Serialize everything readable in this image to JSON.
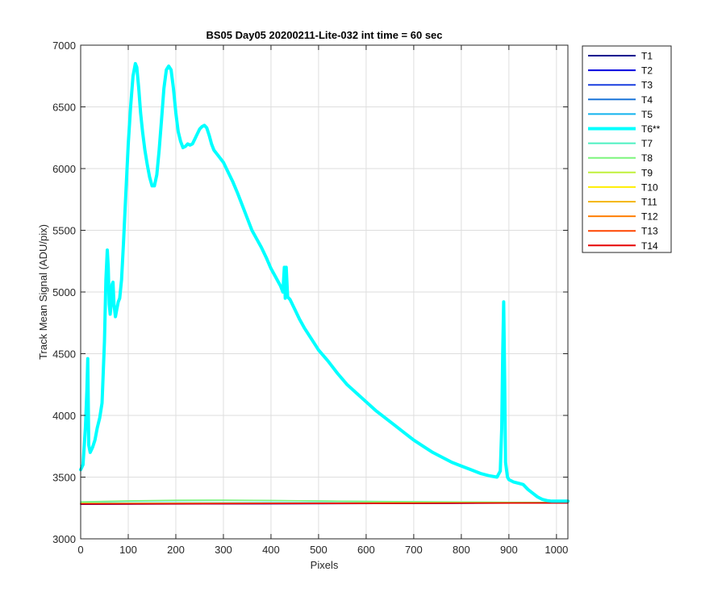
{
  "chart_data": {
    "type": "line",
    "title": "BS05 Day05 20200211-Lite-032 int time = 60 sec",
    "xlabel": "Pixels",
    "ylabel": "Track Mean Signal (ADU/pix)",
    "xlim": [
      0,
      1024
    ],
    "ylim": [
      3000,
      7000
    ],
    "xticks": [
      0,
      100,
      200,
      300,
      400,
      500,
      600,
      700,
      800,
      900,
      1000
    ],
    "yticks": [
      3000,
      3500,
      4000,
      4500,
      5000,
      5500,
      6000,
      6500,
      7000
    ],
    "grid": true,
    "legend_position": "outside-right-top",
    "series": [
      {
        "name": "T1",
        "color": "#00008f",
        "x": [
          0,
          1024
        ],
        "y": [
          3280,
          3290
        ]
      },
      {
        "name": "T2",
        "color": "#0000df",
        "x": [
          0,
          1024
        ],
        "y": [
          3282,
          3291
        ]
      },
      {
        "name": "T3",
        "color": "#1a3fdf",
        "x": [
          0,
          1024
        ],
        "y": [
          3284,
          3292
        ]
      },
      {
        "name": "T4",
        "color": "#1a75d8",
        "x": [
          0,
          1024
        ],
        "y": [
          3286,
          3294
        ]
      },
      {
        "name": "T5",
        "color": "#11b3ee",
        "x": [
          0,
          1024
        ],
        "y": [
          3290,
          3296
        ]
      },
      {
        "name": "T6**",
        "color": "#00ffff",
        "bold": true,
        "x": [
          0,
          5,
          10,
          13,
          15,
          17,
          20,
          25,
          30,
          35,
          40,
          45,
          50,
          53,
          56,
          58,
          60,
          62,
          64,
          66,
          68,
          70,
          73,
          76,
          79,
          82,
          86,
          90,
          95,
          100,
          105,
          110,
          115,
          118,
          122,
          126,
          130,
          135,
          140,
          145,
          150,
          155,
          160,
          165,
          170,
          175,
          180,
          185,
          190,
          195,
          200,
          205,
          210,
          215,
          220,
          225,
          230,
          235,
          240,
          245,
          250,
          255,
          260,
          265,
          270,
          275,
          280,
          290,
          300,
          310,
          320,
          330,
          340,
          350,
          360,
          370,
          380,
          390,
          400,
          410,
          420,
          425,
          428,
          430,
          432,
          435,
          440,
          450,
          460,
          470,
          480,
          490,
          500,
          520,
          540,
          560,
          580,
          600,
          620,
          640,
          660,
          680,
          700,
          720,
          740,
          760,
          780,
          800,
          820,
          840,
          860,
          875,
          882,
          885,
          887,
          889,
          891,
          893,
          897,
          900,
          910,
          920,
          930,
          940,
          950,
          960,
          970,
          980,
          990,
          1000,
          1010,
          1024
        ],
        "y": [
          3560,
          3600,
          3900,
          4200,
          4460,
          3760,
          3700,
          3740,
          3800,
          3900,
          3980,
          4100,
          4600,
          5100,
          5340,
          5200,
          4900,
          4820,
          4900,
          5060,
          5080,
          4900,
          4800,
          4860,
          4920,
          4950,
          5100,
          5400,
          5800,
          6200,
          6500,
          6750,
          6850,
          6820,
          6650,
          6450,
          6300,
          6150,
          6030,
          5930,
          5860,
          5860,
          5950,
          6150,
          6400,
          6650,
          6800,
          6830,
          6800,
          6650,
          6450,
          6300,
          6220,
          6170,
          6180,
          6200,
          6190,
          6200,
          6240,
          6280,
          6320,
          6340,
          6350,
          6330,
          6270,
          6200,
          6150,
          6100,
          6050,
          5970,
          5890,
          5800,
          5700,
          5600,
          5500,
          5430,
          5360,
          5280,
          5190,
          5120,
          5050,
          5000,
          5200,
          4950,
          5200,
          4960,
          4940,
          4860,
          4780,
          4710,
          4650,
          4590,
          4530,
          4440,
          4340,
          4250,
          4180,
          4110,
          4040,
          3980,
          3920,
          3860,
          3800,
          3750,
          3700,
          3660,
          3620,
          3590,
          3560,
          3530,
          3510,
          3500,
          3550,
          3900,
          4500,
          4920,
          4300,
          3620,
          3500,
          3480,
          3460,
          3450,
          3440,
          3400,
          3370,
          3340,
          3320,
          3310,
          3305,
          3305,
          3305,
          3305
        ]
      },
      {
        "name": "T7",
        "color": "#4cf0c0",
        "x": [
          0,
          100,
          200,
          300,
          400,
          500,
          600,
          700,
          800,
          900,
          1000,
          1024
        ],
        "y": [
          3298,
          3305,
          3310,
          3312,
          3310,
          3307,
          3304,
          3301,
          3299,
          3297,
          3296,
          3296
        ]
      },
      {
        "name": "T8",
        "color": "#7cf57c",
        "x": [
          0,
          100,
          200,
          300,
          400,
          500,
          600,
          700,
          800,
          900,
          1000,
          1024
        ],
        "y": [
          3300,
          3308,
          3313,
          3314,
          3311,
          3307,
          3303,
          3300,
          3298,
          3296,
          3295,
          3295
        ]
      },
      {
        "name": "T9",
        "color": "#c0f03a",
        "x": [
          0,
          1024
        ],
        "y": [
          3288,
          3293
        ]
      },
      {
        "name": "T10",
        "color": "#ffee00",
        "x": [
          0,
          1024
        ],
        "y": [
          3287,
          3292
        ]
      },
      {
        "name": "T11",
        "color": "#f5b800",
        "x": [
          0,
          1024
        ],
        "y": [
          3285,
          3292
        ]
      },
      {
        "name": "T12",
        "color": "#ff7f00",
        "x": [
          0,
          1024
        ],
        "y": [
          3284,
          3292
        ]
      },
      {
        "name": "T13",
        "color": "#ff4500",
        "x": [
          0,
          1024
        ],
        "y": [
          3283,
          3291
        ]
      },
      {
        "name": "T14",
        "color": "#e60000",
        "x": [
          0,
          1024
        ],
        "y": [
          3282,
          3291
        ]
      }
    ]
  }
}
